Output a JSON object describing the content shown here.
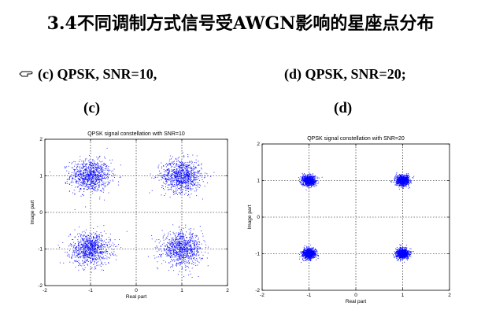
{
  "title": "3.4不同调制方式信号受AWGN影响的星座点分布",
  "bullets": {
    "left": "(c) QPSK, SNR=10,",
    "right": "(d) QPSK, SNR=20;"
  },
  "subplot_labels": {
    "c": "(c)",
    "d": "(d)"
  },
  "chart_data": [
    {
      "type": "scatter",
      "id": "c",
      "title": "QPSK signal constellation with SNR=10",
      "xlabel": "Real part",
      "ylabel": "Image part",
      "xlim": [
        -2,
        2
      ],
      "ylim": [
        -2,
        2
      ],
      "xticks": [
        -2,
        -1,
        0,
        1,
        2
      ],
      "yticks": [
        -2,
        -1,
        0,
        1,
        2
      ],
      "grid": true,
      "color": "#0000ff",
      "centers": [
        [
          -1,
          1
        ],
        [
          1,
          1
        ],
        [
          -1,
          -1
        ],
        [
          1,
          -1
        ]
      ],
      "noise_std": 0.22,
      "points_per_cluster": 900
    },
    {
      "type": "scatter",
      "id": "d",
      "title": "QPSK signal constellation with SNR=20",
      "xlabel": "Real part",
      "ylabel": "Image part",
      "xlim": [
        -2,
        2
      ],
      "ylim": [
        -2,
        2
      ],
      "xticks": [
        -2,
        -1,
        0,
        1,
        2
      ],
      "yticks": [
        -2,
        -1,
        0,
        1,
        2
      ],
      "grid": true,
      "color": "#0000ff",
      "centers": [
        [
          -1,
          1
        ],
        [
          1,
          1
        ],
        [
          -1,
          -1
        ],
        [
          1,
          -1
        ]
      ],
      "noise_std": 0.07,
      "points_per_cluster": 900
    }
  ]
}
